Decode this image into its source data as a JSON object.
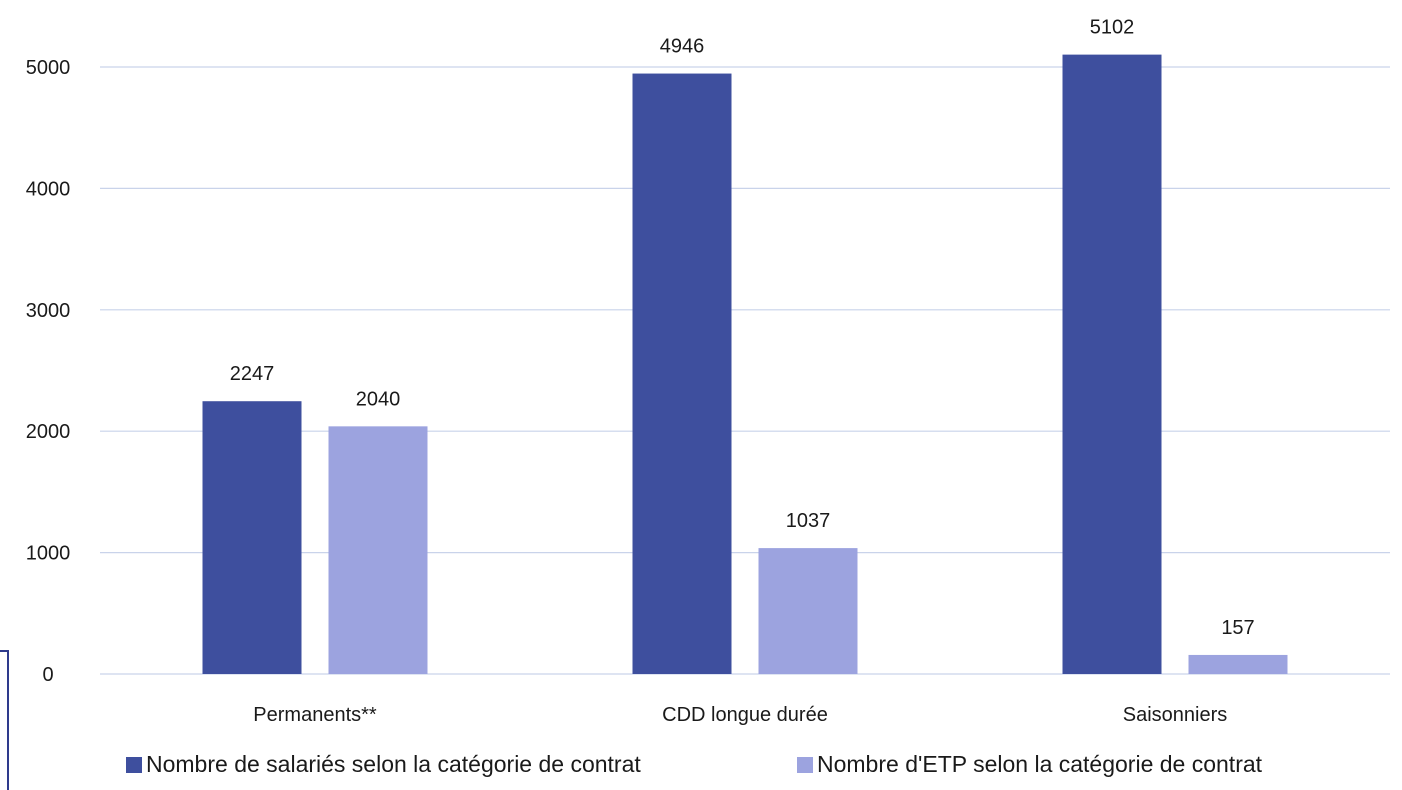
{
  "chart_data": {
    "type": "bar",
    "categories": [
      "Permanents**",
      "CDD longue durée",
      "Saisonniers"
    ],
    "series": [
      {
        "name": "Nombre de salariés selon la catégorie de contrat",
        "color": "#3e4f9e",
        "values": [
          2247,
          4946,
          5102
        ]
      },
      {
        "name": "Nombre d'ETP selon la catégorie de contrat",
        "color": "#9ca3df",
        "values": [
          2040,
          1037,
          157
        ]
      }
    ],
    "yticks": [
      0,
      1000,
      2000,
      3000,
      4000,
      5000
    ],
    "ylim": [
      0,
      5000
    ],
    "grid": true,
    "gridColor": "#c9d3ea",
    "legend": "bottom",
    "title": "",
    "xlabel": "",
    "ylabel": ""
  }
}
